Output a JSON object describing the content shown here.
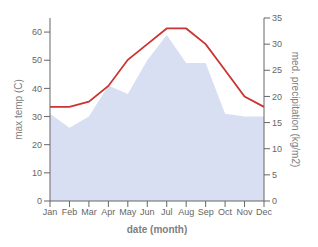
{
  "chart_data": {
    "type": "area",
    "categories": [
      "Jan",
      "Feb",
      "Mar",
      "Apr",
      "May",
      "Jun",
      "Jul",
      "Aug",
      "Sep",
      "Oct",
      "Nov",
      "Dec"
    ],
    "series": [
      {
        "type": "area",
        "color": "#b8c4e8",
        "values": [
          31,
          26,
          30,
          41,
          38,
          50,
          59,
          49,
          49,
          31,
          30,
          30
        ]
      },
      {
        "type": "line",
        "color": "#cc3333",
        "axis": "y2",
        "values": [
          18,
          18,
          19,
          22,
          27,
          30,
          33,
          33,
          30,
          25,
          20,
          18
        ]
      }
    ],
    "xlabel": "date (month)",
    "ylabel": "max temp (C)",
    "y2label": "med. precipitation (kg/m2)",
    "ylim": [
      0,
      65
    ],
    "yticks": [
      0,
      10,
      20,
      30,
      40,
      50,
      60
    ],
    "y2lim": [
      0,
      35
    ],
    "y2ticks": [
      0,
      5,
      10,
      15,
      20,
      25,
      30,
      35
    ],
    "grid": false
  }
}
